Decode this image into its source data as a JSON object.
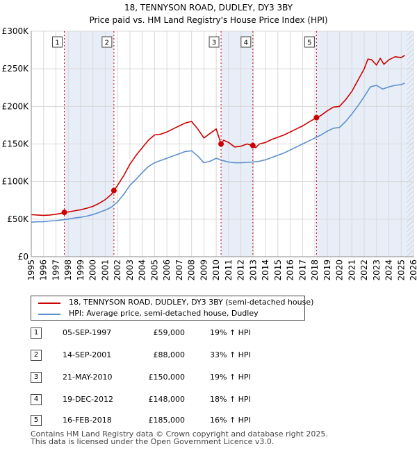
{
  "chart_data": {
    "type": "line",
    "title": "18, TENNYSON ROAD, DUDLEY, DY3 3BY",
    "subtitle": "Price paid vs. HM Land Registry's House Price Index (HPI)",
    "xlabel": "",
    "ylabel": "",
    "xlim": [
      1995,
      2026
    ],
    "ylim": [
      0,
      300000
    ],
    "x_ticks": [
      1995,
      1996,
      1997,
      1998,
      1999,
      2000,
      2001,
      2002,
      2003,
      2004,
      2005,
      2006,
      2007,
      2008,
      2009,
      2010,
      2011,
      2012,
      2013,
      2014,
      2015,
      2016,
      2017,
      2018,
      2019,
      2020,
      2021,
      2022,
      2023,
      2024,
      2025,
      2026
    ],
    "y_ticks": [
      {
        "value": 0,
        "label": "£0"
      },
      {
        "value": 50000,
        "label": "£50K"
      },
      {
        "value": 100000,
        "label": "£100K"
      },
      {
        "value": 150000,
        "label": "£150K"
      },
      {
        "value": 200000,
        "label": "£200K"
      },
      {
        "value": 250000,
        "label": "£250K"
      },
      {
        "value": 300000,
        "label": "£300K"
      }
    ],
    "shaded_ranges": [
      [
        1997.68,
        2001.7
      ],
      [
        2010.39,
        2012.97
      ],
      [
        2018.13,
        2026
      ]
    ],
    "hatch_from": 2025.45,
    "sales": [
      {
        "label": "1",
        "x": 1997.68,
        "value": 59000
      },
      {
        "label": "2",
        "x": 2001.7,
        "value": 88000
      },
      {
        "label": "3",
        "x": 2010.39,
        "value": 150000
      },
      {
        "label": "4",
        "x": 2012.97,
        "value": 148000
      },
      {
        "label": "5",
        "x": 2018.13,
        "value": 185000
      }
    ],
    "series": [
      {
        "name": "18, TENNYSON ROAD, DUDLEY, DY3 3BY (semi-detached house)",
        "color": "#cc0000",
        "points": [
          [
            1995.0,
            56000
          ],
          [
            1995.5,
            55500
          ],
          [
            1996.0,
            55000
          ],
          [
            1996.5,
            55500
          ],
          [
            1997.0,
            56500
          ],
          [
            1997.5,
            58000
          ],
          [
            1997.68,
            59000
          ],
          [
            1998.0,
            59500
          ],
          [
            1998.5,
            61000
          ],
          [
            1999.0,
            62500
          ],
          [
            1999.5,
            64500
          ],
          [
            2000.0,
            67000
          ],
          [
            2000.5,
            71000
          ],
          [
            2001.0,
            76000
          ],
          [
            2001.5,
            83000
          ],
          [
            2001.7,
            88000
          ],
          [
            2002.0,
            95000
          ],
          [
            2002.5,
            108000
          ],
          [
            2003.0,
            123000
          ],
          [
            2003.5,
            135000
          ],
          [
            2004.0,
            145000
          ],
          [
            2004.5,
            155000
          ],
          [
            2005.0,
            162000
          ],
          [
            2005.5,
            163000
          ],
          [
            2006.0,
            166000
          ],
          [
            2006.5,
            170000
          ],
          [
            2007.0,
            174000
          ],
          [
            2007.5,
            178000
          ],
          [
            2008.0,
            180000
          ],
          [
            2008.5,
            170000
          ],
          [
            2009.0,
            158000
          ],
          [
            2009.5,
            164000
          ],
          [
            2010.0,
            170000
          ],
          [
            2010.39,
            150000
          ],
          [
            2010.6,
            155000
          ],
          [
            2011.0,
            152000
          ],
          [
            2011.5,
            146000
          ],
          [
            2012.0,
            147000
          ],
          [
            2012.5,
            150000
          ],
          [
            2012.97,
            148000
          ],
          [
            2013.2,
            145000
          ],
          [
            2013.5,
            150000
          ],
          [
            2014.0,
            152000
          ],
          [
            2014.5,
            156000
          ],
          [
            2015.0,
            159000
          ],
          [
            2015.5,
            162000
          ],
          [
            2016.0,
            166000
          ],
          [
            2016.5,
            170000
          ],
          [
            2017.0,
            174000
          ],
          [
            2017.5,
            179000
          ],
          [
            2018.13,
            185000
          ],
          [
            2018.5,
            188000
          ],
          [
            2019.0,
            194000
          ],
          [
            2019.5,
            199000
          ],
          [
            2020.0,
            200000
          ],
          [
            2020.5,
            209000
          ],
          [
            2021.0,
            220000
          ],
          [
            2021.5,
            235000
          ],
          [
            2022.0,
            250000
          ],
          [
            2022.3,
            263000
          ],
          [
            2022.6,
            262000
          ],
          [
            2023.0,
            255000
          ],
          [
            2023.3,
            264000
          ],
          [
            2023.6,
            256000
          ],
          [
            2024.0,
            262000
          ],
          [
            2024.5,
            266000
          ],
          [
            2025.0,
            265000
          ],
          [
            2025.3,
            268000
          ]
        ]
      },
      {
        "name": "HPI: Average price, semi-detached house, Dudley",
        "color": "#5b8fd0",
        "points": [
          [
            1995.0,
            46000
          ],
          [
            1995.5,
            46500
          ],
          [
            1996.0,
            46500
          ],
          [
            1996.5,
            47500
          ],
          [
            1997.0,
            48000
          ],
          [
            1997.5,
            49000
          ],
          [
            1998.0,
            50000
          ],
          [
            1998.5,
            51500
          ],
          [
            1999.0,
            52500
          ],
          [
            1999.5,
            54000
          ],
          [
            2000.0,
            56000
          ],
          [
            2000.5,
            59000
          ],
          [
            2001.0,
            62000
          ],
          [
            2001.5,
            66000
          ],
          [
            2002.0,
            73000
          ],
          [
            2002.5,
            83000
          ],
          [
            2003.0,
            95000
          ],
          [
            2003.5,
            103000
          ],
          [
            2004.0,
            112000
          ],
          [
            2004.5,
            120000
          ],
          [
            2005.0,
            125000
          ],
          [
            2005.5,
            128000
          ],
          [
            2006.0,
            131000
          ],
          [
            2006.5,
            134000
          ],
          [
            2007.0,
            137000
          ],
          [
            2007.5,
            140000
          ],
          [
            2008.0,
            141000
          ],
          [
            2008.5,
            134000
          ],
          [
            2009.0,
            125000
          ],
          [
            2009.5,
            127000
          ],
          [
            2010.0,
            131000
          ],
          [
            2010.5,
            128000
          ],
          [
            2011.0,
            126000
          ],
          [
            2011.5,
            125000
          ],
          [
            2012.0,
            125000
          ],
          [
            2012.5,
            125500
          ],
          [
            2013.0,
            126000
          ],
          [
            2013.5,
            127000
          ],
          [
            2014.0,
            129000
          ],
          [
            2014.5,
            132000
          ],
          [
            2015.0,
            135000
          ],
          [
            2015.5,
            138000
          ],
          [
            2016.0,
            142000
          ],
          [
            2016.5,
            146000
          ],
          [
            2017.0,
            150000
          ],
          [
            2017.5,
            154000
          ],
          [
            2018.0,
            158000
          ],
          [
            2018.5,
            162000
          ],
          [
            2019.0,
            167000
          ],
          [
            2019.5,
            171000
          ],
          [
            2020.0,
            172000
          ],
          [
            2020.5,
            180000
          ],
          [
            2021.0,
            190000
          ],
          [
            2021.5,
            201000
          ],
          [
            2022.0,
            213000
          ],
          [
            2022.5,
            226000
          ],
          [
            2023.0,
            228000
          ],
          [
            2023.5,
            223000
          ],
          [
            2024.0,
            226000
          ],
          [
            2024.5,
            228000
          ],
          [
            2025.0,
            229000
          ],
          [
            2025.3,
            231000
          ]
        ]
      }
    ]
  },
  "legend": [
    {
      "label": "18, TENNYSON ROAD, DUDLEY, DY3 3BY (semi-detached house)",
      "color": "#cc0000"
    },
    {
      "label": "HPI: Average price, semi-detached house, Dudley",
      "color": "#5b8fd0"
    }
  ],
  "sales_table": [
    {
      "num": "1",
      "date": "05-SEP-1997",
      "price": "£59,000",
      "hpi": "19% ↑ HPI"
    },
    {
      "num": "2",
      "date": "14-SEP-2001",
      "price": "£88,000",
      "hpi": "33% ↑ HPI"
    },
    {
      "num": "3",
      "date": "21-MAY-2010",
      "price": "£150,000",
      "hpi": "19% ↑ HPI"
    },
    {
      "num": "4",
      "date": "19-DEC-2012",
      "price": "£148,000",
      "hpi": "18% ↑ HPI"
    },
    {
      "num": "5",
      "date": "16-FEB-2018",
      "price": "£185,000",
      "hpi": "16% ↑ HPI"
    }
  ],
  "footer": {
    "line1": "Contains HM Land Registry data © Crown copyright and database right 2025.",
    "line2": "This data is licensed under the Open Government Licence v3.0."
  }
}
